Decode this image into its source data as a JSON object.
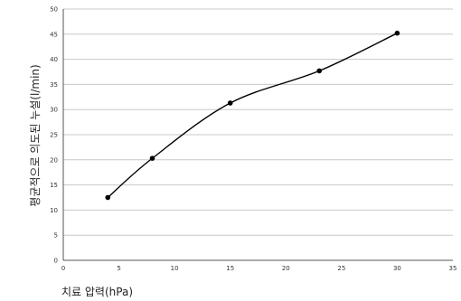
{
  "chart_data": {
    "type": "line",
    "title": "",
    "xlabel": "치료 압력(hPa)",
    "ylabel": "평균적으로 의도된 누설(l/min)",
    "xlim": [
      0,
      35
    ],
    "ylim": [
      0,
      50
    ],
    "x_ticks": [
      "0",
      "5",
      "10",
      "15",
      "20",
      "25",
      "30",
      "35"
    ],
    "y_ticks": [
      "0",
      "5",
      "10",
      "15",
      "20",
      "25",
      "30",
      "35",
      "40",
      "45",
      "50"
    ],
    "grid": "horizontal",
    "legend": "none",
    "series": [
      {
        "x": [
          4,
          8,
          15,
          23,
          30
        ],
        "values": [
          12.5,
          20.3,
          31.3,
          37.7,
          45.2
        ]
      }
    ]
  }
}
